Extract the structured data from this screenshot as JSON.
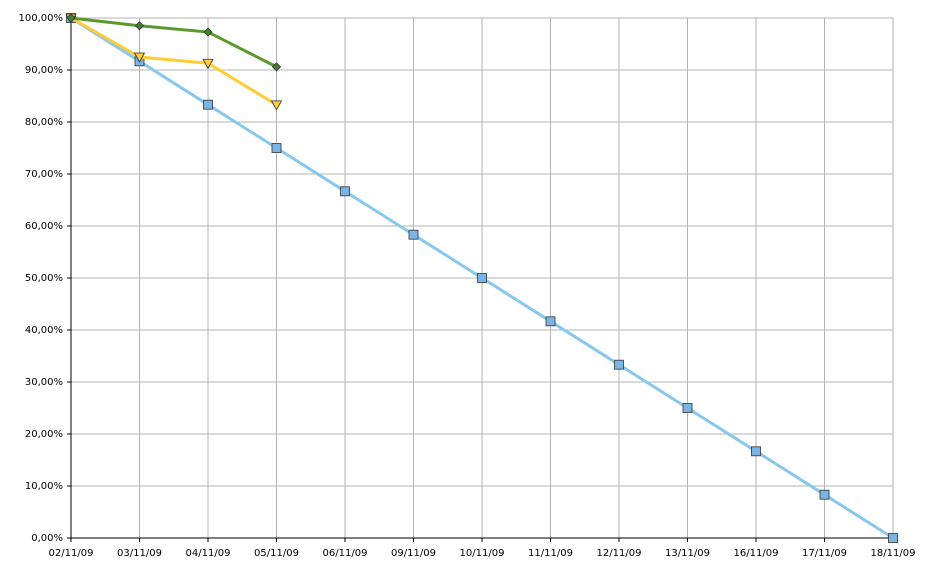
{
  "chart_data": {
    "type": "line",
    "categories": [
      "02/11/09",
      "03/11/09",
      "04/11/09",
      "05/11/09",
      "06/11/09",
      "09/11/09",
      "10/11/09",
      "11/11/09",
      "12/11/09",
      "13/11/09",
      "16/11/09",
      "17/11/09",
      "18/11/09"
    ],
    "series": [
      {
        "color": "#87c8ee",
        "marker_color": "#7ab4e4",
        "marker": "square",
        "values": [
          100,
          91.67,
          83.33,
          75,
          66.67,
          58.33,
          50,
          41.67,
          33.33,
          25,
          16.67,
          8.33,
          0
        ]
      },
      {
        "color": "#ffcc33",
        "marker_color": "#ffcc33",
        "marker": "triangle-down",
        "values": [
          100,
          92.5,
          91.3,
          83.3,
          null,
          null,
          null,
          null,
          null,
          null,
          null,
          null,
          null
        ]
      },
      {
        "color": "#5a9a2a",
        "marker_color": "#3f7f2f",
        "marker": "diamond",
        "values": [
          100,
          98.5,
          97.3,
          90.6,
          null,
          null,
          null,
          null,
          null,
          null,
          null,
          null,
          null
        ]
      }
    ],
    "ylim": [
      0,
      100
    ],
    "yticks": [
      {
        "value": 0,
        "label": "0,00%"
      },
      {
        "value": 10,
        "label": "10,00%"
      },
      {
        "value": 20,
        "label": "20,00%"
      },
      {
        "value": 30,
        "label": "30,00%"
      },
      {
        "value": 40,
        "label": "40,00%"
      },
      {
        "value": 50,
        "label": "50,00%"
      },
      {
        "value": 60,
        "label": "60,00%"
      },
      {
        "value": 70,
        "label": "70,00%"
      },
      {
        "value": 80,
        "label": "80,00%"
      },
      {
        "value": 90,
        "label": "90,00%"
      },
      {
        "value": 100,
        "label": "100,00%"
      }
    ],
    "grid": true
  }
}
